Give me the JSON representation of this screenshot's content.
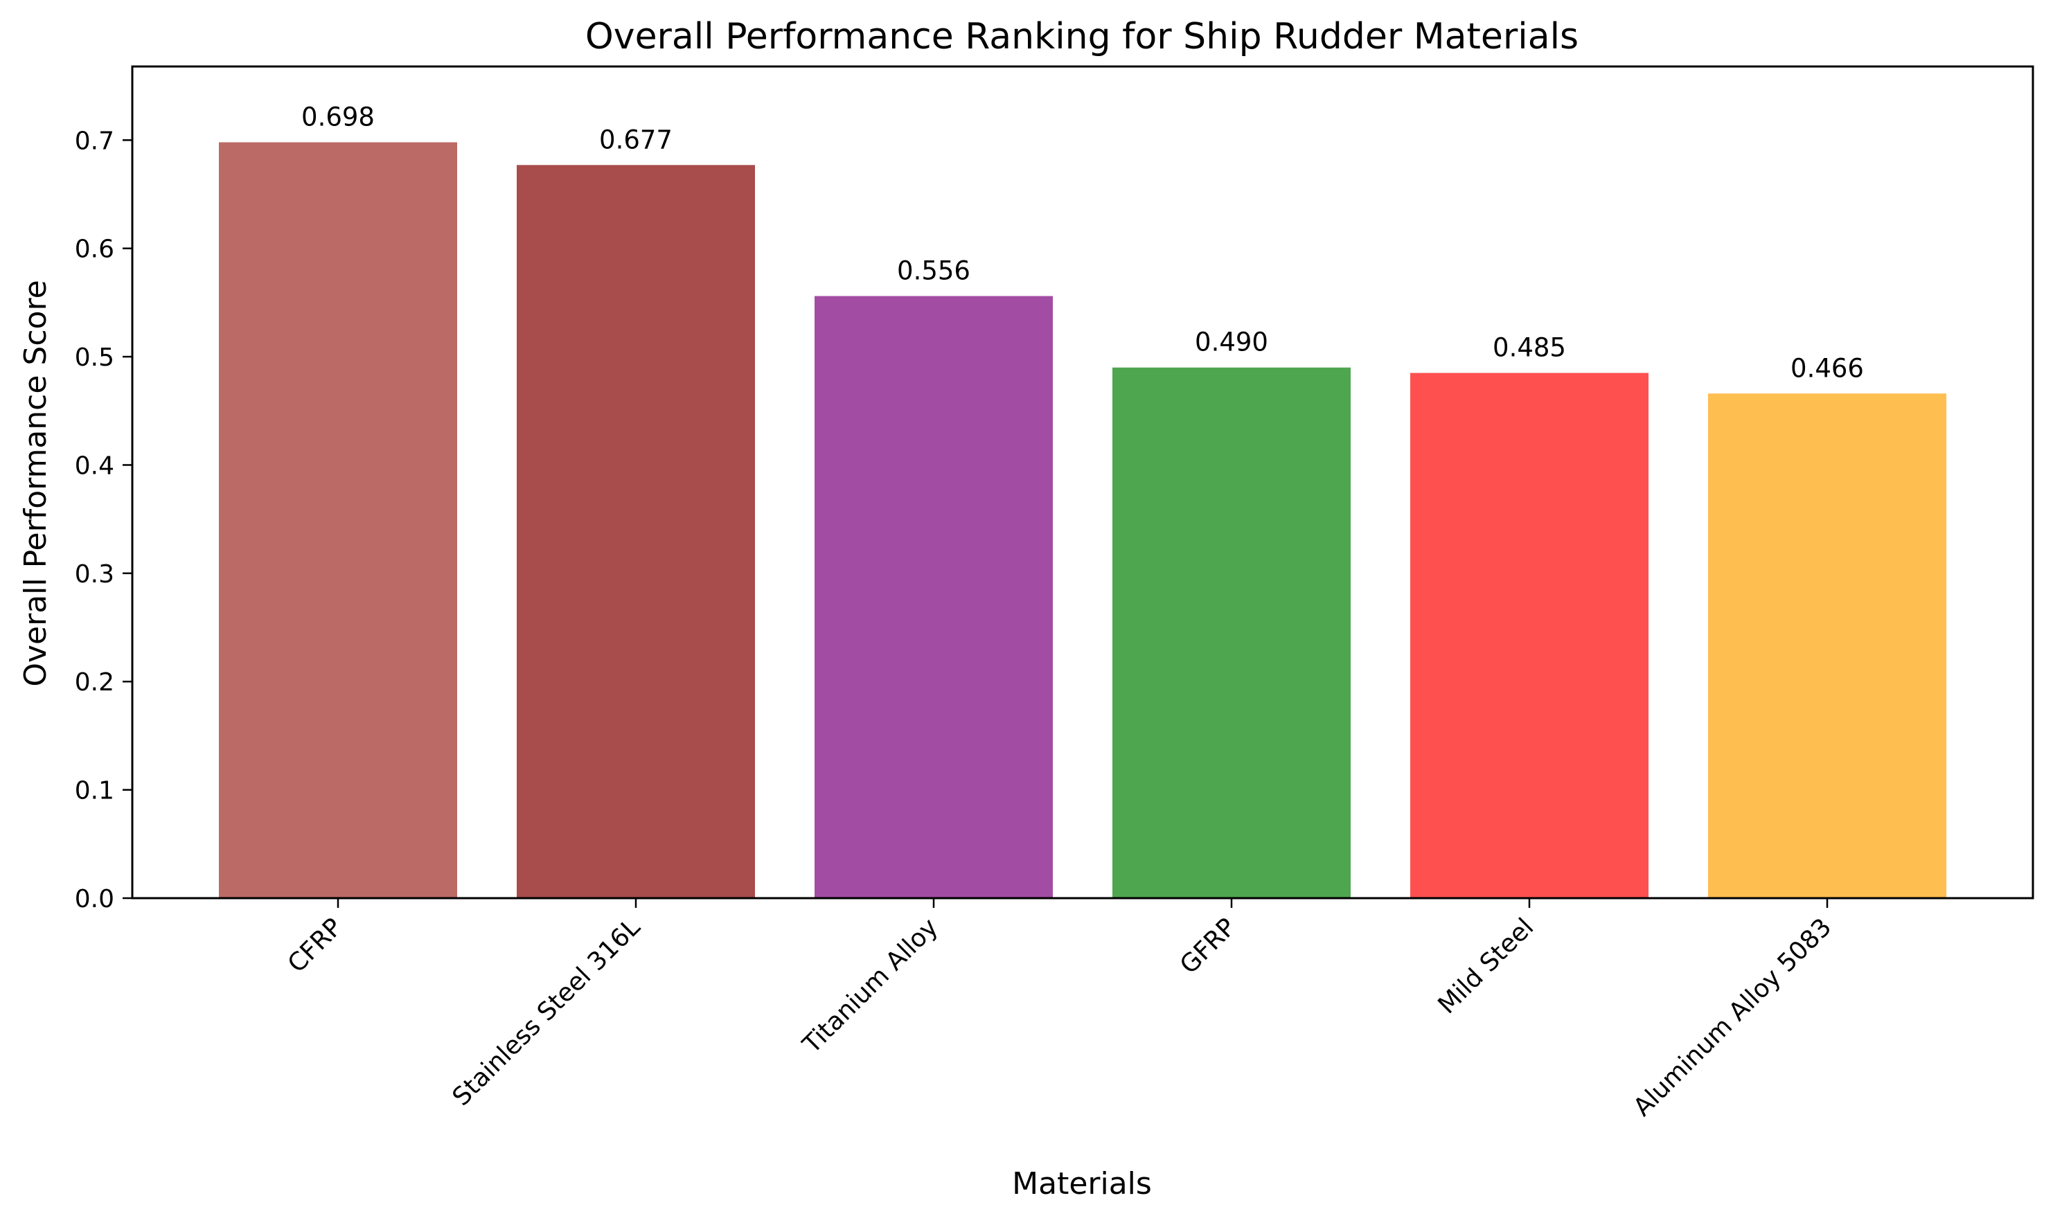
{
  "chart_data": {
    "type": "bar",
    "title": "Overall Performance Ranking for Ship Rudder Materials",
    "xlabel": "Materials",
    "ylabel": "Overall Performance Score",
    "categories": [
      "CFRP",
      "Stainless Steel 316L",
      "Titanium Alloy",
      "GFRP",
      "Mild Steel",
      "Aluminum Alloy 5083"
    ],
    "values": [
      0.698,
      0.677,
      0.556,
      0.49,
      0.485,
      0.466
    ],
    "value_labels": [
      "0.698",
      "0.677",
      "0.556",
      "0.490",
      "0.485",
      "0.466"
    ],
    "colors": [
      "#bc6a66",
      "#a94c4c",
      "#a34ca3",
      "#4ea64e",
      "#ff5050",
      "#febe50"
    ],
    "ylim": [
      0,
      0.768
    ],
    "yticks": [
      0.0,
      0.1,
      0.2,
      0.3,
      0.4,
      0.5,
      0.6,
      0.7
    ],
    "ytick_labels": [
      "0.0",
      "0.1",
      "0.2",
      "0.3",
      "0.4",
      "0.5",
      "0.6",
      "0.7"
    ],
    "grid": false,
    "legend": "none"
  }
}
